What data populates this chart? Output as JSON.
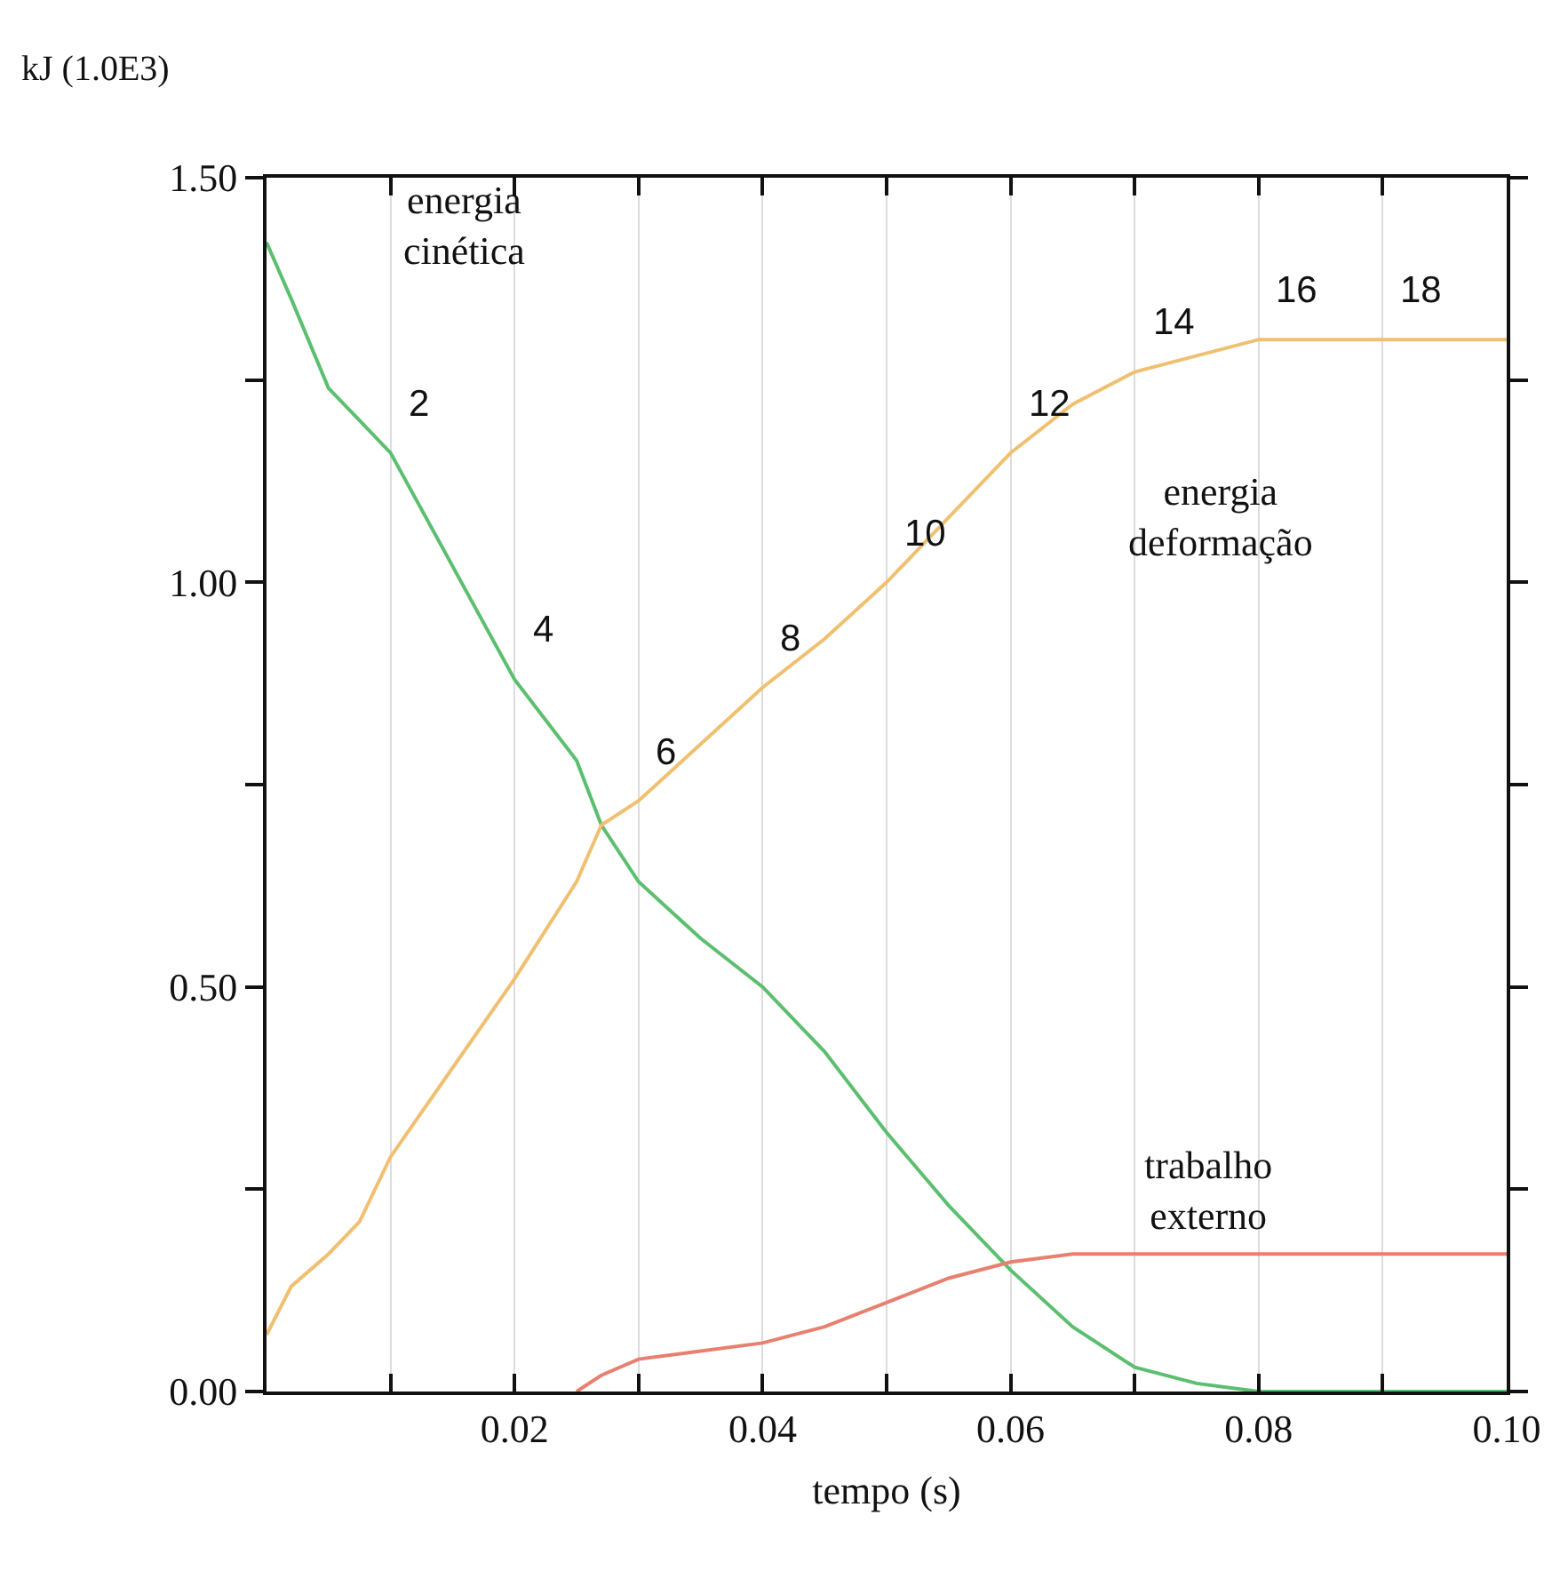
{
  "chart_data": {
    "type": "line",
    "xlabel": "tempo (s)",
    "ylabel": "kJ (1.0E3)",
    "x": [
      0,
      0.002,
      0.005,
      0.0075,
      0.01,
      0.015,
      0.02,
      0.025,
      0.027,
      0.03,
      0.035,
      0.04,
      0.045,
      0.05,
      0.055,
      0.06,
      0.065,
      0.07,
      0.075,
      0.08,
      0.09,
      0.1
    ],
    "series": [
      {
        "name": "energia\ncinética",
        "color": "#5cbf6f",
        "values": [
          1.42,
          1.35,
          1.24,
          1.2,
          1.16,
          1.02,
          0.88,
          0.78,
          0.7,
          0.63,
          0.56,
          0.5,
          0.42,
          0.32,
          0.23,
          0.15,
          0.08,
          0.03,
          0.01,
          0,
          0,
          0
        ]
      },
      {
        "name": "energia\ndeformação",
        "color": "#f0c070",
        "values": [
          0.07,
          0.13,
          0.17,
          0.21,
          0.29,
          0.4,
          0.51,
          0.63,
          0.7,
          0.73,
          0.8,
          0.87,
          0.93,
          1.0,
          1.08,
          1.16,
          1.22,
          1.26,
          1.28,
          1.3,
          1.3,
          1.3
        ]
      },
      {
        "name": "trabalho\nexterno",
        "color": "#e88070",
        "values": [
          null,
          null,
          null,
          null,
          null,
          null,
          null,
          0,
          0.02,
          0.04,
          0.05,
          0.06,
          0.08,
          0.11,
          0.14,
          0.16,
          0.17,
          0.17,
          0.17,
          0.17,
          0.17,
          0.17
        ]
      }
    ],
    "xlim": [
      0,
      0.1
    ],
    "ylim": [
      0,
      1.5
    ],
    "xticks": [
      {
        "value": 0.01,
        "label": null
      },
      0.02,
      {
        "value": 0.03,
        "label": null
      },
      0.04,
      {
        "value": 0.05,
        "label": null
      },
      0.06,
      {
        "value": 0.07,
        "label": null
      },
      0.08,
      {
        "value": 0.09,
        "label": null
      },
      {
        "value": 0.1,
        "label": "0.10"
      }
    ],
    "yticks": [
      {
        "value": 0,
        "label": "0.00"
      },
      {
        "value": 0.25,
        "label": null
      },
      {
        "value": 0.5,
        "label": "0.50"
      },
      {
        "value": 0.75,
        "label": null
      },
      {
        "value": 1,
        "label": "1.00"
      },
      {
        "value": 1.25,
        "label": null
      },
      {
        "value": 1.5,
        "label": "1.50"
      }
    ],
    "grid": "x",
    "legend": false,
    "marker": "none",
    "line_style": "solid",
    "annotations": [
      {
        "text": "2",
        "x": 0.01,
        "y": 1.16
      },
      {
        "text": "4",
        "x": 0.02,
        "y": 0.88
      },
      {
        "text": "6",
        "x": 0.03,
        "y": 0.73
      },
      {
        "text": "8",
        "x": 0.04,
        "y": 0.87
      },
      {
        "text": "10",
        "x": 0.05,
        "y": 1.0
      },
      {
        "text": "12",
        "x": 0.06,
        "y": 1.16
      },
      {
        "text": "14",
        "x": 0.07,
        "y": 1.26
      },
      {
        "text": "16",
        "x": 0.08,
        "y": 1.3
      },
      {
        "text": "18",
        "x": 0.09,
        "y": 1.3
      }
    ]
  }
}
